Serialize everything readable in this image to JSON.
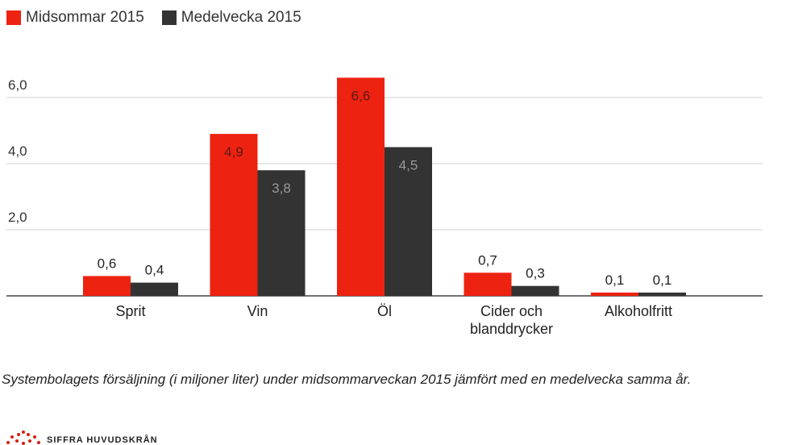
{
  "chart_data": {
    "type": "bar",
    "categories": [
      "Sprit",
      "Vin",
      "Öl",
      "Cider och\nblanddrycker",
      "Alkoholfritt"
    ],
    "series": [
      {
        "name": "Midsommar 2015",
        "color": "#ee2211",
        "values": [
          0.6,
          4.9,
          6.6,
          0.7,
          0.1
        ],
        "labels": [
          "0,6",
          "4,9",
          "6,6",
          "0,7",
          "0,1"
        ]
      },
      {
        "name": "Medelvecka 2015",
        "color": "#333333",
        "values": [
          0.4,
          3.8,
          4.5,
          0.3,
          0.1
        ],
        "labels": [
          "0,4",
          "3,8",
          "4,5",
          "0,3",
          "0,1"
        ]
      }
    ],
    "yticks": [
      2,
      4,
      6
    ],
    "ytick_labels": [
      "2,0",
      "4,0",
      "6,0"
    ],
    "ylim": [
      0,
      6.6
    ],
    "grid": true,
    "legend": "top-left",
    "xlabel": "",
    "ylabel": ""
  },
  "caption": "Systembolagets försäljning (i miljoner liter) under midsommarveckan 2015 jämfört med en medelvecka samma år.",
  "logo_text": "SIFFRA HUVUDSKRÅN"
}
